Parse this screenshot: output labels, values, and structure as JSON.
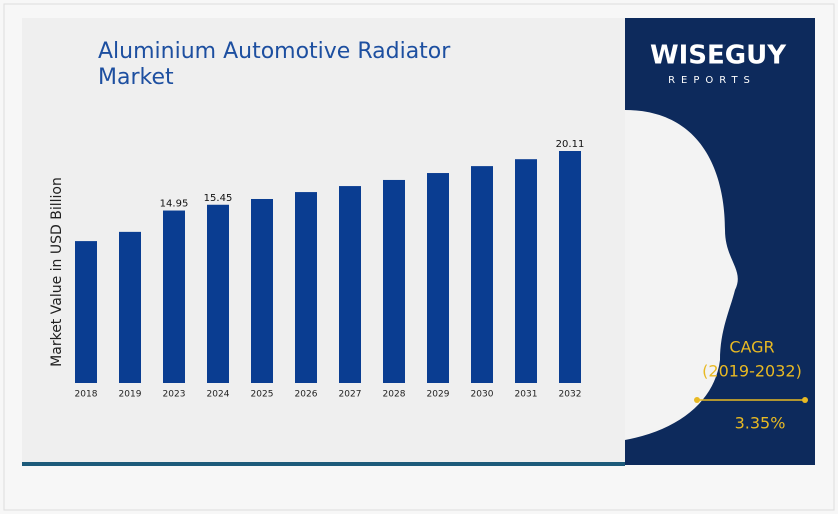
{
  "chart_data": {
    "type": "bar",
    "title": "Aluminium Automotive Radiator Market",
    "y_label": "Market Value in USD Billion",
    "categories": [
      "2018",
      "2019",
      "2023",
      "2024",
      "2025",
      "2026",
      "2027",
      "2028",
      "2029",
      "2030",
      "2031",
      "2032"
    ],
    "values": [
      12.3,
      13.1,
      14.95,
      15.45,
      15.95,
      16.55,
      17.07,
      17.6,
      18.2,
      18.8,
      19.4,
      20.11
    ],
    "value_labels": [
      null,
      null,
      "14.95",
      "15.45",
      null,
      null,
      null,
      null,
      null,
      null,
      null,
      "20.11"
    ],
    "color": "#0a3d91"
  },
  "brand": {
    "name": "WISEGUY",
    "tagline": "REPORTS"
  },
  "cagr": {
    "label": "CAGR",
    "period": "(2019-2032)",
    "value": "3.35%"
  }
}
